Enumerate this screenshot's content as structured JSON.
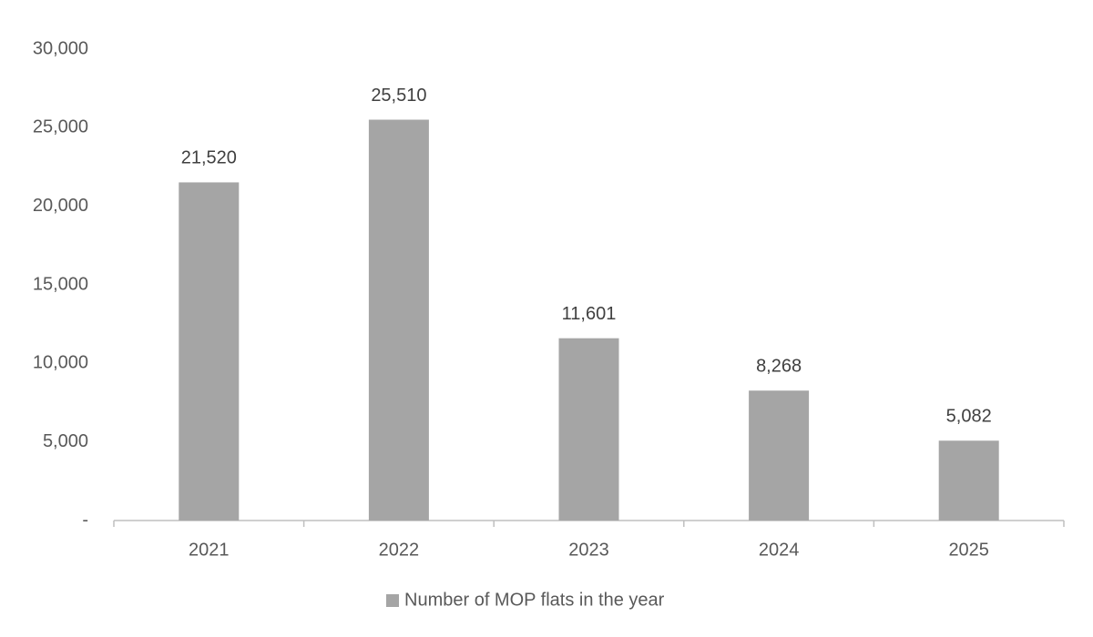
{
  "chart_data": {
    "type": "bar",
    "categories": [
      "2021",
      "2022",
      "2023",
      "2024",
      "2025"
    ],
    "series": [
      {
        "name": "Number of MOP flats in the year",
        "color": "#a5a5a5",
        "values": [
          21520,
          25510,
          11601,
          8268,
          5082
        ],
        "value_labels": [
          "21,520",
          "25,510",
          "11,601",
          "8,268",
          "5,082"
        ]
      }
    ],
    "ylim": [
      0,
      30000
    ],
    "yticks": [
      {
        "value": 0,
        "label": "-"
      },
      {
        "value": 5000,
        "label": "5,000"
      },
      {
        "value": 10000,
        "label": "10,000"
      },
      {
        "value": 15000,
        "label": "15,000"
      },
      {
        "value": 20000,
        "label": "20,000"
      },
      {
        "value": 25000,
        "label": "25,000"
      },
      {
        "value": 30000,
        "label": "30,000"
      }
    ],
    "grid": false,
    "legend": "bottom"
  }
}
